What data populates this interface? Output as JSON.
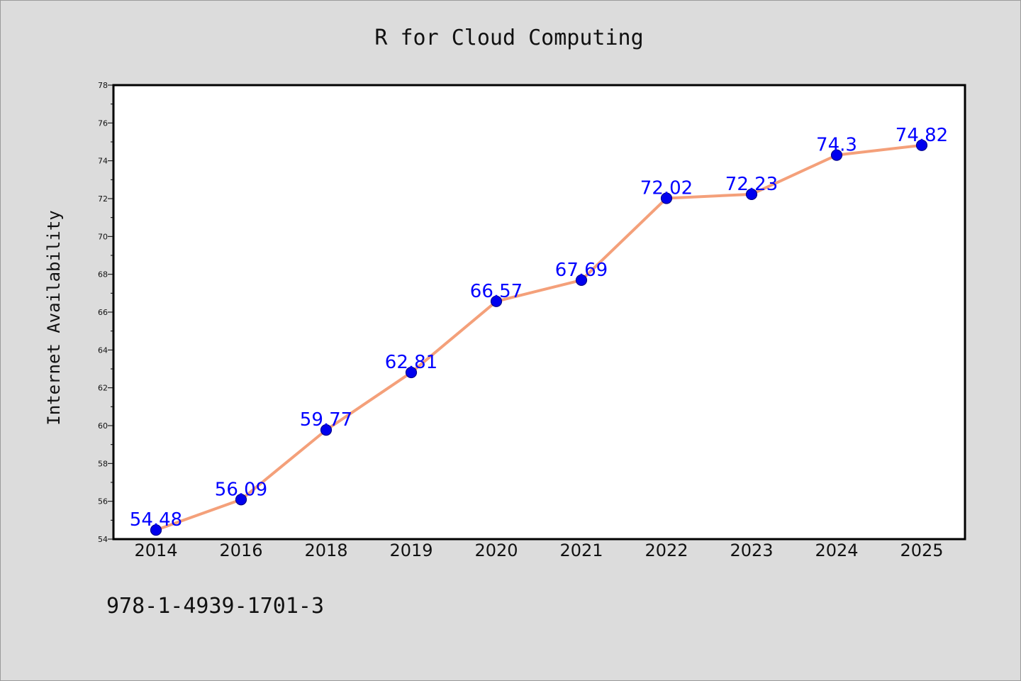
{
  "chart_data": {
    "type": "line",
    "title": "R for Cloud Computing",
    "xlabel": "",
    "ylabel": "Internet Availability",
    "categories": [
      "2014",
      "2016",
      "2018",
      "2019",
      "2020",
      "2021",
      "2022",
      "2023",
      "2024",
      "2025"
    ],
    "series": [
      {
        "values": [
          54.48,
          56.09,
          59.77,
          62.81,
          66.57,
          67.69,
          72.02,
          72.23,
          74.3,
          74.82
        ],
        "labels": [
          "54.48",
          "56.09",
          "59.77",
          "62.81",
          "66.57",
          "67.69",
          "72.02",
          "72.23",
          "74.3",
          "74.82"
        ]
      }
    ],
    "ylim": [
      54,
      78
    ],
    "yticks": [
      "54",
      "56",
      "58",
      "60",
      "62",
      "64",
      "66",
      "68",
      "70",
      "72",
      "74",
      "76",
      "78"
    ],
    "grid": false,
    "legend": "none",
    "colors": {
      "line": "#f4a07a",
      "marker_fill": "#0000ee",
      "marker_edge": "#00008b",
      "data_label": "#0000ff"
    }
  },
  "footer": {
    "isbn": "978-1-4939-1701-3"
  }
}
